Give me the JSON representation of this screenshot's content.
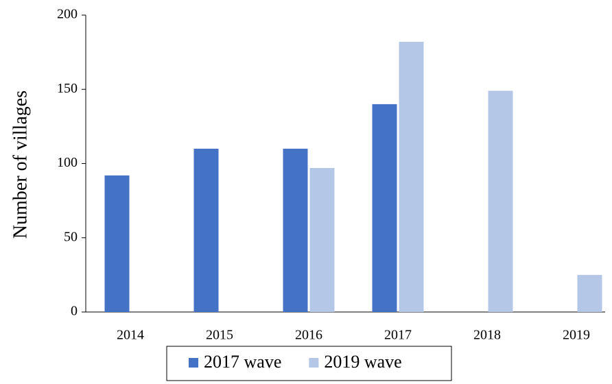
{
  "chart_data": {
    "type": "bar",
    "y_label": "Number of villages",
    "categories": [
      "2014",
      "2015",
      "2016",
      "2017",
      "2018",
      "2019"
    ],
    "series": [
      {
        "name": "2017 wave",
        "color": "#4472c4",
        "values": [
          92,
          110,
          110,
          140,
          null,
          null
        ]
      },
      {
        "name": "2019 wave",
        "color": "#b4c7e7",
        "values": [
          null,
          null,
          97,
          182,
          149,
          25
        ]
      }
    ],
    "ylim": [
      0,
      200
    ],
    "yticks": [
      0,
      50,
      100,
      150,
      200
    ],
    "grid": false,
    "legend": "bottom"
  }
}
